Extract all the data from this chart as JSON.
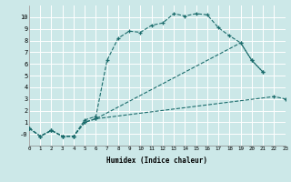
{
  "xlabel": "Humidex (Indice chaleur)",
  "bg_color": "#cce8e8",
  "grid_color": "#b0d0d0",
  "line_color": "#1a6b6b",
  "xlim": [
    0,
    23
  ],
  "ylim": [
    -1.0,
    11.0
  ],
  "xticks": [
    0,
    1,
    2,
    3,
    4,
    5,
    6,
    7,
    8,
    9,
    10,
    11,
    12,
    13,
    14,
    15,
    16,
    17,
    18,
    19,
    20,
    21,
    22,
    23
  ],
  "yticks": [
    0,
    1,
    2,
    3,
    4,
    5,
    6,
    7,
    8,
    9,
    10
  ],
  "ytick_labels": [
    "-0",
    "1",
    "2",
    "3",
    "4",
    "5",
    "6",
    "7",
    "8",
    "9",
    "10"
  ],
  "line1_x": [
    0,
    1,
    2,
    3,
    4,
    5,
    6,
    7,
    8,
    9,
    10,
    11,
    12,
    13,
    14,
    15,
    16,
    17,
    18,
    19,
    20,
    21
  ],
  "line1_y": [
    0.5,
    -0.2,
    0.3,
    -0.2,
    -0.2,
    1.2,
    1.5,
    6.3,
    8.2,
    8.8,
    8.7,
    9.3,
    9.5,
    10.3,
    10.1,
    10.3,
    10.2,
    9.1,
    8.4,
    7.8,
    6.3,
    5.3
  ],
  "line2_x": [
    0,
    1,
    2,
    3,
    4,
    5,
    6,
    19,
    20,
    21
  ],
  "line2_y": [
    0.5,
    -0.2,
    0.3,
    -0.2,
    -0.2,
    1.0,
    1.3,
    7.8,
    6.3,
    5.3
  ],
  "line3_x": [
    0,
    1,
    2,
    3,
    4,
    5,
    6,
    22,
    23
  ],
  "line3_y": [
    0.5,
    -0.2,
    0.3,
    -0.2,
    -0.2,
    1.0,
    1.3,
    3.2,
    3.0
  ]
}
